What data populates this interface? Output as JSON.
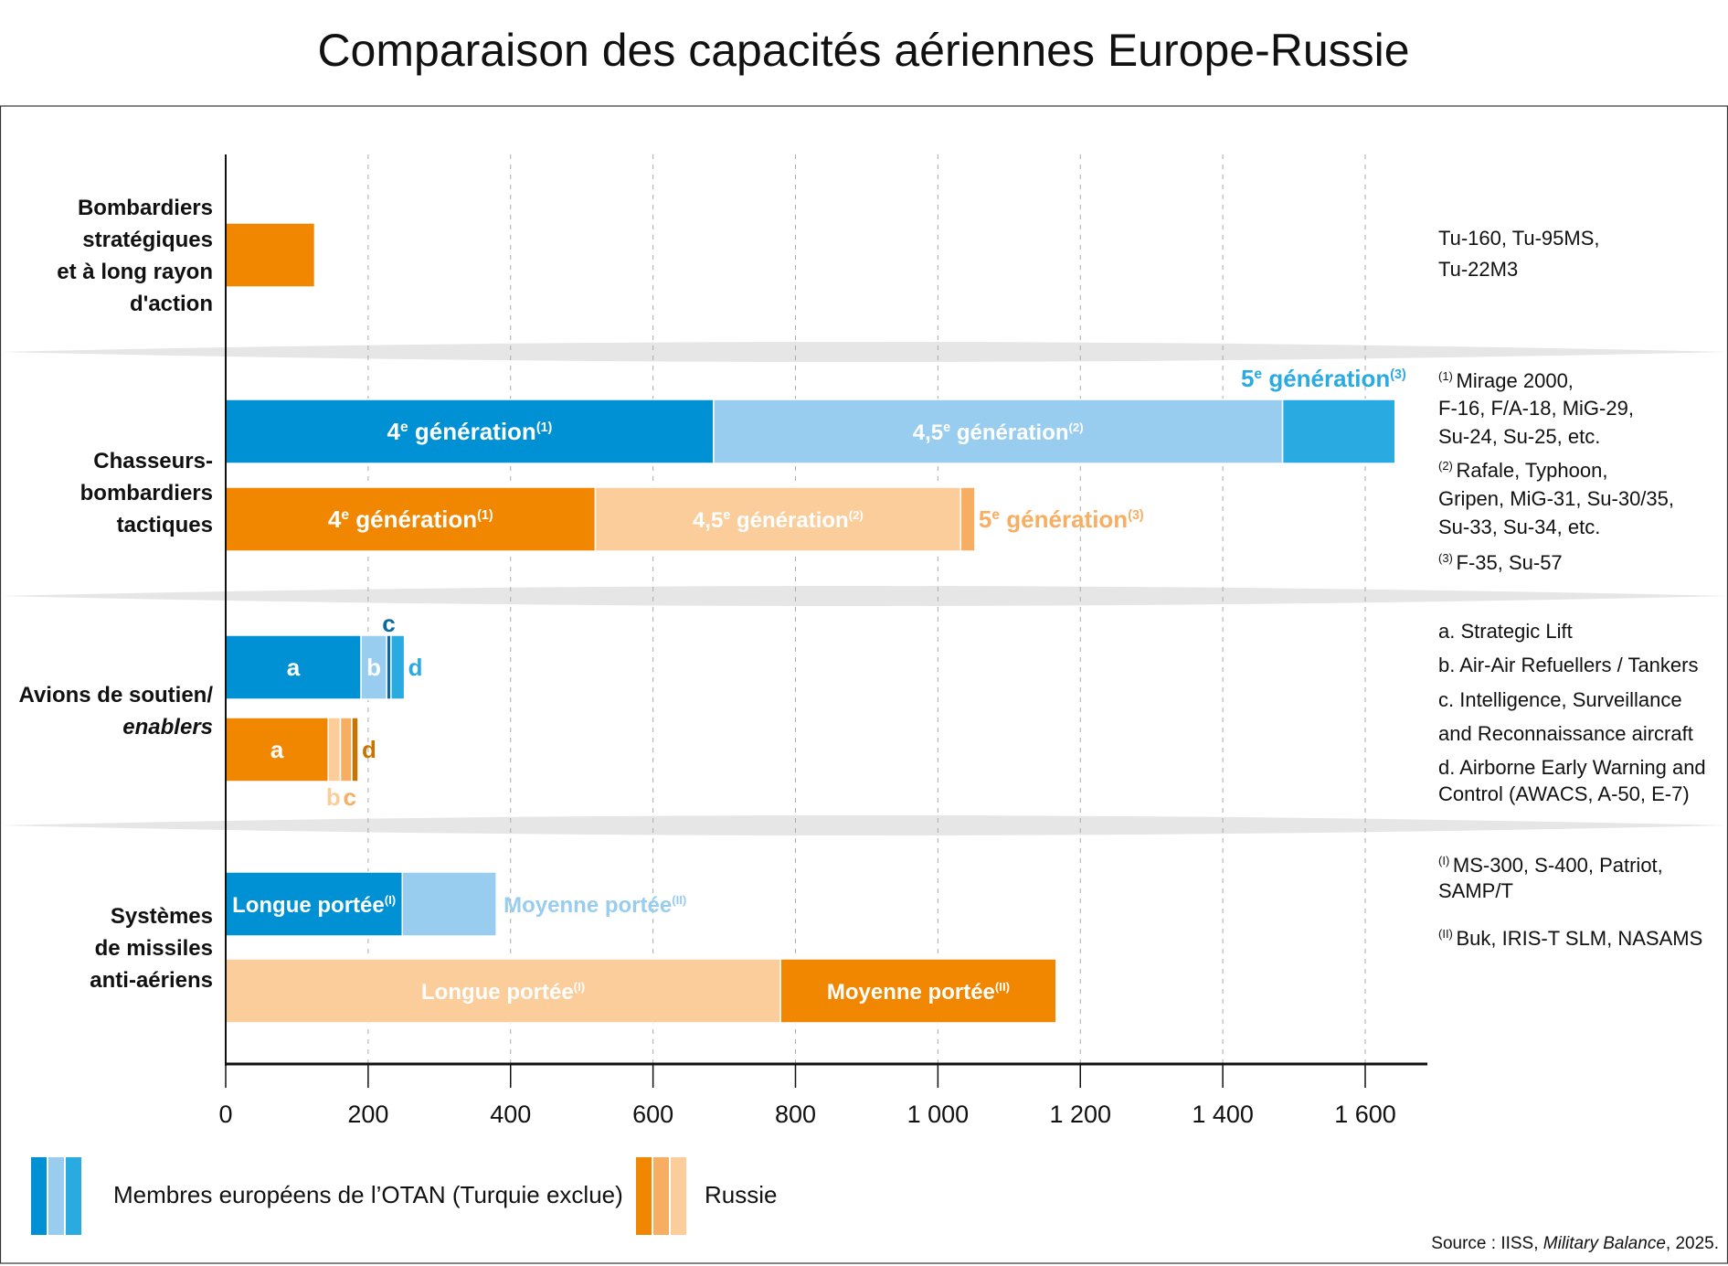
{
  "chart_data": {
    "type": "bar",
    "orientation": "horizontal",
    "stacked": true,
    "title": "Comparaison des capacités aériennes Europe-Russie",
    "xlim": [
      0,
      1700
    ],
    "xticks": [
      0,
      200,
      400,
      600,
      800,
      1000,
      1200,
      1400,
      1600
    ],
    "xtick_labels": [
      "0",
      "200",
      "400",
      "600",
      "800",
      "1 000",
      "1 200",
      "1 400",
      "1 600"
    ],
    "grid": "vertical dashed",
    "colors": {
      "nato_1": "#0091d5",
      "nato_2": "#99cdf0",
      "nato_3": "#29abe2",
      "nato_dark": "#0a6aa0",
      "rus_1": "#f18700",
      "rus_2": "#fbcd9b",
      "rus_3": "#f8ae62",
      "rus_dark": "#c87400",
      "separator": "#e6e6e6"
    },
    "categories": [
      {
        "label": [
          "Bombardiers",
          "stratégiques",
          "et à long rayon",
          "d'action"
        ],
        "notes": [
          {
            "text": "Tu-160, Tu-95MS,"
          },
          {
            "text": "Tu-22M3"
          }
        ],
        "bars": [
          {
            "group": "Russie",
            "segments": [
              {
                "value": 125,
                "color": "#f18700"
              }
            ]
          }
        ]
      },
      {
        "label": [
          "Chasseurs-",
          "bombardiers",
          "tactiques"
        ],
        "notes": [
          {
            "sup": "(1)",
            "text": "Mirage 2000,"
          },
          {
            "text": "F-16, F/A-18, MiG-29,"
          },
          {
            "text": "Su-24, Su-25, etc."
          },
          {
            "sup": "(2)",
            "text": "Rafale, Typhoon,"
          },
          {
            "text": "Gripen, MiG-31, Su-30/35,"
          },
          {
            "text": "Su-33, Su-34, etc."
          },
          {
            "sup": "(3)",
            "text": "F-35, Su-57"
          }
        ],
        "bars": [
          {
            "group": "Membres européens de l’OTAN",
            "segments": [
              {
                "value": 685,
                "color": "#0091d5",
                "label": "4",
                "sup1": "e",
                "label2": " génération",
                "sup2": "(1)",
                "pos": "inside"
              },
              {
                "value": 799,
                "color": "#99cdf0",
                "label": "4,5",
                "sup1": "e",
                "label2": " génération",
                "sup2": "(2)",
                "pos": "inside"
              },
              {
                "value": 158,
                "color": "#29abe2",
                "label": "5",
                "sup1": "e",
                "label2": " génération",
                "sup2": "(3)",
                "pos": "above-right",
                "text_color": "#29abe2"
              }
            ]
          },
          {
            "group": "Russie",
            "segments": [
              {
                "value": 519,
                "color": "#f18700",
                "label": "4",
                "sup1": "e",
                "label2": " génération",
                "sup2": "(1)",
                "pos": "inside"
              },
              {
                "value": 513,
                "color": "#fbcd9b",
                "label": "4,5",
                "sup1": "e",
                "label2": " génération",
                "sup2": "(2)",
                "pos": "inside"
              },
              {
                "value": 20,
                "color": "#f8ae62",
                "label": "5",
                "sup1": "e",
                "label2": " génération",
                "sup2": "(3)",
                "pos": "right",
                "text_color": "#f8ae62"
              }
            ]
          }
        ]
      },
      {
        "label": [
          "Avions de soutien/",
          "enablers"
        ],
        "italic_line": 1,
        "notes": [
          {
            "text": "a. Strategic Lift"
          },
          {
            "text": "b. Air-Air Refuellers / Tankers"
          },
          {
            "text": "c. Intelligence, Surveillance"
          },
          {
            "text": "and Reconnaissance aircraft"
          },
          {
            "text": "d. Airborne Early Warning and"
          },
          {
            "text": "Control (AWACS, A-50, E-7)"
          }
        ],
        "bars": [
          {
            "group": "Membres européens de l’OTAN",
            "segments": [
              {
                "value": 190,
                "color": "#0091d5",
                "label": "a",
                "pos": "inside"
              },
              {
                "value": 36,
                "color": "#99cdf0",
                "label": "b",
                "pos": "inside"
              },
              {
                "value": 6,
                "color": "#0a6aa0",
                "label": "c",
                "pos": "above",
                "text_color": "#0a6aa0"
              },
              {
                "value": 19,
                "color": "#29abe2",
                "label": "d",
                "pos": "right",
                "text_color": "#29abe2"
              }
            ]
          },
          {
            "group": "Russie",
            "segments": [
              {
                "value": 144,
                "color": "#f18700",
                "label": "a",
                "pos": "inside"
              },
              {
                "value": 17,
                "color": "#fbcd9b",
                "label": "b",
                "pos": "below",
                "text_color": "#fbcd9b"
              },
              {
                "value": 16,
                "color": "#f8ae62",
                "label": "c",
                "pos": "below",
                "text_color": "#f8ae62"
              },
              {
                "value": 9,
                "color": "#c87400",
                "label": "d",
                "pos": "right",
                "text_color": "#c87400"
              }
            ]
          }
        ]
      },
      {
        "label": [
          "Systèmes",
          "de missiles",
          "anti-aériens"
        ],
        "notes": [
          {
            "sup": "(I)",
            "text": "MS-300, S-400, Patriot,"
          },
          {
            "text": "SAMP/T"
          },
          {
            "sup": "(II)",
            "text": "Buk, IRIS-T SLM, NASAMS"
          }
        ],
        "bars": [
          {
            "group": "Membres européens de l’OTAN",
            "segments": [
              {
                "value": 248,
                "color": "#0091d5",
                "label": "Longue portée",
                "sup2": "(I)",
                "pos": "inside"
              },
              {
                "value": 132,
                "color": "#99cdf0",
                "label": "Moyenne portée",
                "sup2": "(II)",
                "pos": "right",
                "text_color": "#99cdf0"
              }
            ]
          },
          {
            "group": "Russie",
            "segments": [
              {
                "value": 779,
                "color": "#fbcd9b",
                "label": "Longue portée",
                "sup2": "(I)",
                "pos": "inside"
              },
              {
                "value": 387,
                "color": "#f18700",
                "label": "Moyenne portée",
                "sup2": "(II)",
                "pos": "inside"
              }
            ]
          }
        ]
      }
    ],
    "legend": [
      {
        "label": "Membres européens de l’OTAN (Turquie exclue)",
        "colors": [
          "#0091d5",
          "#99cdf0",
          "#29abe2"
        ]
      },
      {
        "label": "Russie",
        "colors": [
          "#f18700",
          "#f8ae62",
          "#fbcd9b"
        ]
      }
    ],
    "legend_placement": "bottom-left",
    "source": {
      "prefix": "Source : IISS, ",
      "italic": "Military Balance",
      "suffix": ", 2025."
    }
  }
}
